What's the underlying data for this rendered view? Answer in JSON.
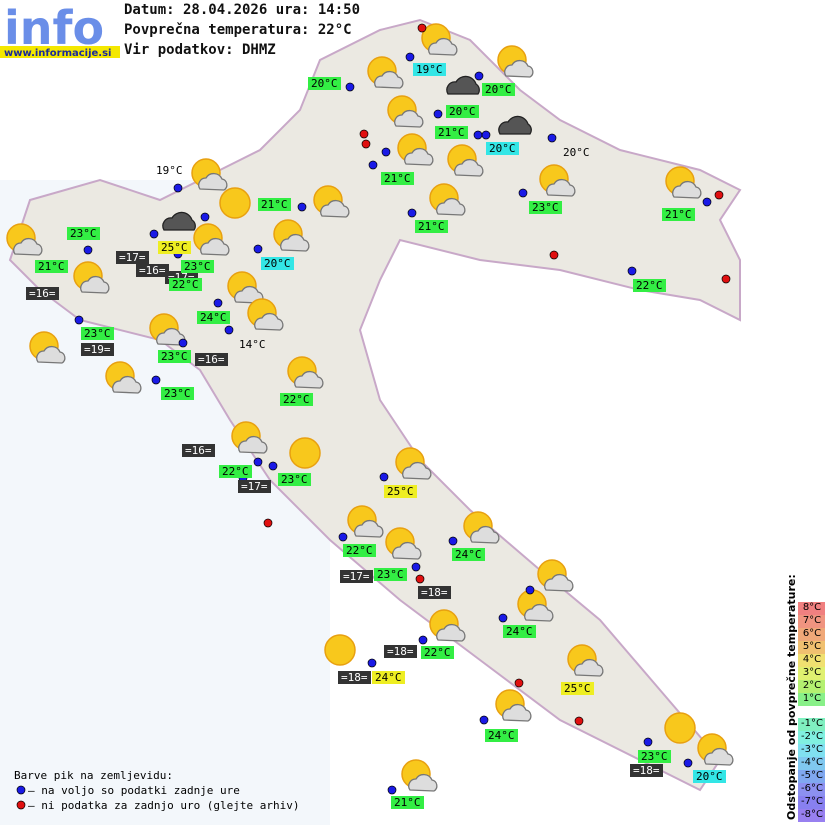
{
  "header": {
    "logo": "info",
    "site": "www.informacije.si",
    "date_line": "Datum: 28.04.2026 ura: 14:50",
    "avg_temp": "Povprečna temperatura: 22°C",
    "source": "Vir podatkov: DHMZ"
  },
  "stations": [
    "19°C",
    "20°C",
    "20°C",
    "20°C",
    "21°C",
    "20°C",
    "21°C",
    "20°C",
    "19°C",
    "21°C",
    "23°C",
    "21°C",
    "21°C",
    "23°C",
    "25°C",
    "=17=",
    "=16=",
    "=17=",
    "21°C",
    "23°C",
    "20°C",
    "22°C",
    "=16=",
    "22°C",
    "24°C",
    "23°C",
    "=19=",
    "14°C",
    "23°C",
    "=16=",
    "23°C",
    "22°C",
    "=16=",
    "22°C",
    "23°C",
    "=17=",
    "25°C",
    "22°C",
    "24°C",
    "=17=",
    "23°C",
    "=18=",
    "24°C",
    "=18=",
    "22°C",
    "=18=",
    "24°C",
    "25°C",
    "24°C",
    "23°C",
    "=18=",
    "20°C",
    "21°C"
  ],
  "scale": {
    "title": "Odstopanje od povprečne temperature:",
    "labels": [
      "8°C",
      "7°C",
      "6°C",
      "5°C",
      "4°C",
      "3°C",
      "2°C",
      "1°C",
      "-1°C",
      "-2°C",
      "-3°C",
      "-4°C",
      "-5°C",
      "-6°C",
      "-7°C",
      "-8°C"
    ]
  },
  "legend": {
    "title": "Barve pik na zemljevidu:",
    "available": "– na voljo so podatki zadnje ure",
    "missing": "– ni podatka za zadnjo uro (glejte arhiv)"
  }
}
